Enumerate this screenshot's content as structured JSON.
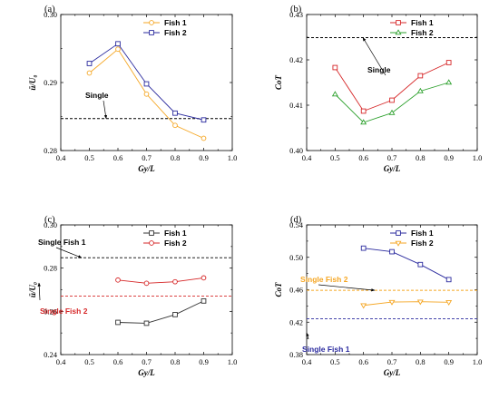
{
  "chart_data": [
    {
      "type": "line",
      "panel_label": "(a)",
      "title": "",
      "xlabel": "Gy/L",
      "ylabel": "ū/U₀",
      "xlim": [
        0.4,
        1.0
      ],
      "ylim": [
        0.28,
        0.3
      ],
      "xticks": [
        0.4,
        0.5,
        0.6,
        0.7,
        0.8,
        0.9,
        1.0
      ],
      "xtick_labels": [
        "0.4",
        "0.5",
        "0.6",
        "0.7",
        "0.8",
        "0.9",
        "1.0"
      ],
      "yticks": [
        0.28,
        0.29,
        0.3
      ],
      "ytick_labels": [
        "0.28",
        "0.29",
        "0.30"
      ],
      "legend_position": "top-right",
      "series": [
        {
          "name": "Fish 1",
          "color": "#F5A623",
          "marker": "circle",
          "x": [
            0.5,
            0.6,
            0.7,
            0.8,
            0.9
          ],
          "y": [
            0.2914,
            0.2949,
            0.2883,
            0.2837,
            0.2818
          ]
        },
        {
          "name": "Fish 2",
          "color": "#2A2A9E",
          "marker": "square",
          "x": [
            0.5,
            0.6,
            0.7,
            0.8,
            0.9
          ],
          "y": [
            0.2928,
            0.2957,
            0.2898,
            0.2855,
            0.2845
          ]
        }
      ],
      "reference_lines": [
        {
          "label": "Single",
          "y": 0.2847,
          "color": "#000000",
          "label_color": "#000000"
        }
      ]
    },
    {
      "type": "line",
      "panel_label": "(b)",
      "title": "",
      "xlabel": "Gy/L",
      "ylabel": "CoT",
      "xlim": [
        0.4,
        1.0
      ],
      "ylim": [
        0.4,
        0.43
      ],
      "xticks": [
        0.4,
        0.5,
        0.6,
        0.7,
        0.8,
        0.9,
        1.0
      ],
      "xtick_labels": [
        "0.4",
        "0.5",
        "0.6",
        "0.7",
        "0.8",
        "0.9",
        "1.0"
      ],
      "yticks": [
        0.4,
        0.41,
        0.42,
        0.43
      ],
      "ytick_labels": [
        "0.40",
        "0.41",
        "0.42",
        "0.43"
      ],
      "legend_position": "top-right",
      "series": [
        {
          "name": "Fish 1",
          "color": "#D62728",
          "marker": "square",
          "x": [
            0.5,
            0.6,
            0.7,
            0.8,
            0.9
          ],
          "y": [
            0.4183,
            0.4087,
            0.4111,
            0.4165,
            0.4194
          ]
        },
        {
          "name": "Fish 2",
          "color": "#2CA02C",
          "marker": "triangle",
          "x": [
            0.5,
            0.6,
            0.7,
            0.8,
            0.9
          ],
          "y": [
            0.4124,
            0.4062,
            0.4083,
            0.4131,
            0.415
          ]
        }
      ],
      "reference_lines": [
        {
          "label": "Single",
          "y": 0.4249,
          "color": "#000000",
          "label_color": "#000000"
        }
      ]
    },
    {
      "type": "line",
      "panel_label": "(c)",
      "title": "",
      "xlabel": "Gy/L",
      "ylabel": "ū/U₀",
      "xlim": [
        0.4,
        1.0
      ],
      "ylim": [
        0.24,
        0.3
      ],
      "xticks": [
        0.4,
        0.5,
        0.6,
        0.7,
        0.8,
        0.9,
        1.0
      ],
      "xtick_labels": [
        "0.4",
        "0.5",
        "0.6",
        "0.7",
        "0.8",
        "0.9",
        "1.0"
      ],
      "yticks": [
        0.24,
        0.26,
        0.28,
        0.3
      ],
      "ytick_labels": [
        "0.24",
        "0.26",
        "0.28",
        "0.30"
      ],
      "legend_position": "top-right",
      "series": [
        {
          "name": "Fish 1",
          "color": "#333333",
          "marker": "square",
          "x": [
            0.6,
            0.7,
            0.8,
            0.9
          ],
          "y": [
            0.2549,
            0.2545,
            0.2585,
            0.2648
          ]
        },
        {
          "name": "Fish 2",
          "color": "#D62728",
          "marker": "circle",
          "x": [
            0.6,
            0.7,
            0.8,
            0.9
          ],
          "y": [
            0.2745,
            0.273,
            0.2737,
            0.2755
          ]
        }
      ],
      "reference_lines": [
        {
          "label": "Single Fish 1",
          "y": 0.2848,
          "color": "#000000",
          "label_color": "#000000"
        },
        {
          "label": "Single Fish 2",
          "y": 0.2671,
          "color": "#D62728",
          "label_color": "#D62728"
        }
      ]
    },
    {
      "type": "line",
      "panel_label": "(d)",
      "title": "",
      "xlabel": "Gy/L",
      "ylabel": "CoT",
      "xlim": [
        0.4,
        1.0
      ],
      "ylim": [
        0.38,
        0.54
      ],
      "xticks": [
        0.4,
        0.5,
        0.6,
        0.7,
        0.8,
        0.9,
        1.0
      ],
      "xtick_labels": [
        "0.4",
        "0.5",
        "0.6",
        "0.7",
        "0.8",
        "0.9",
        "1.0"
      ],
      "yticks": [
        0.38,
        0.42,
        0.46,
        0.5,
        0.54
      ],
      "ytick_labels": [
        "0.38",
        "0.42",
        "0.46",
        "0.50",
        "0.54"
      ],
      "legend_position": "top-right",
      "series": [
        {
          "name": "Fish 1",
          "color": "#2A2A9E",
          "marker": "square",
          "x": [
            0.6,
            0.7,
            0.8,
            0.9
          ],
          "y": [
            0.5113,
            0.5069,
            0.4911,
            0.4725
          ]
        },
        {
          "name": "Fish 2",
          "color": "#F5A623",
          "marker": "triangle-down",
          "x": [
            0.6,
            0.7,
            0.8,
            0.9
          ],
          "y": [
            0.4407,
            0.4448,
            0.4452,
            0.4446
          ]
        }
      ],
      "reference_lines": [
        {
          "label": "Single Fish 2",
          "y": 0.4593,
          "color": "#F5A623",
          "label_color": "#F5A623"
        },
        {
          "label": "Single Fish 1",
          "y": 0.4243,
          "color": "#2A2A9E",
          "label_color": "#2A2A9E"
        }
      ]
    }
  ]
}
